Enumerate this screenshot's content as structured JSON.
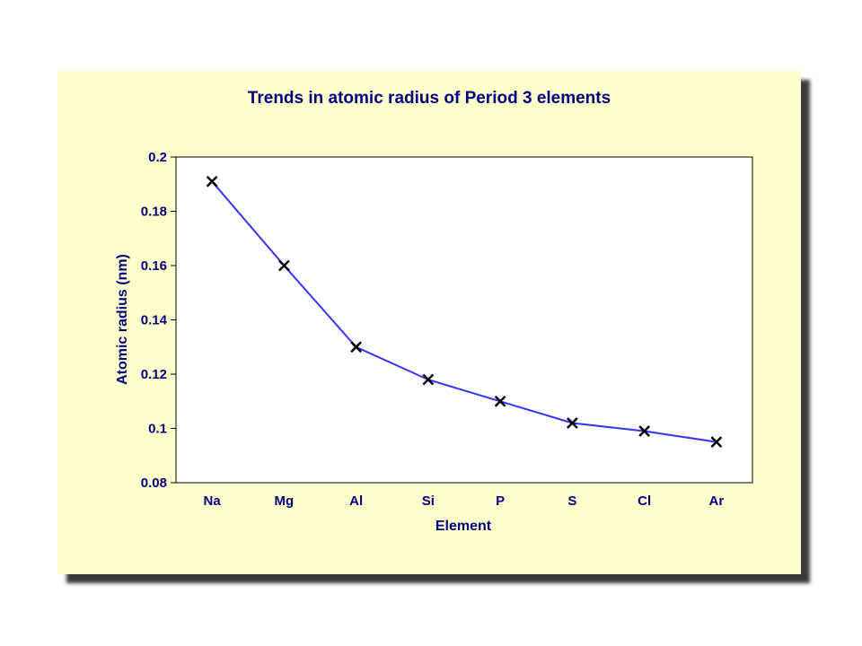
{
  "chart_data": {
    "type": "line",
    "title": "Trends in atomic radius of Period 3 elements",
    "xlabel": "Element",
    "ylabel": "Atomic radius (nm)",
    "categories": [
      "Na",
      "Mg",
      "Al",
      "Si",
      "P",
      "S",
      "Cl",
      "Ar"
    ],
    "values": [
      0.191,
      0.16,
      0.13,
      0.118,
      0.11,
      0.102,
      0.099,
      0.095
    ],
    "ylim": [
      0.08,
      0.2
    ],
    "yticks": [
      "0.08",
      "0.1",
      "0.12",
      "0.14",
      "0.16",
      "0.18",
      "0.2"
    ],
    "grid": false,
    "legend": "none",
    "marker": "x",
    "colors": {
      "line": "#3333ff",
      "text": "#000080",
      "marker": "#000000",
      "background": "#ffffcc",
      "plot_area": "#ffffff"
    }
  }
}
